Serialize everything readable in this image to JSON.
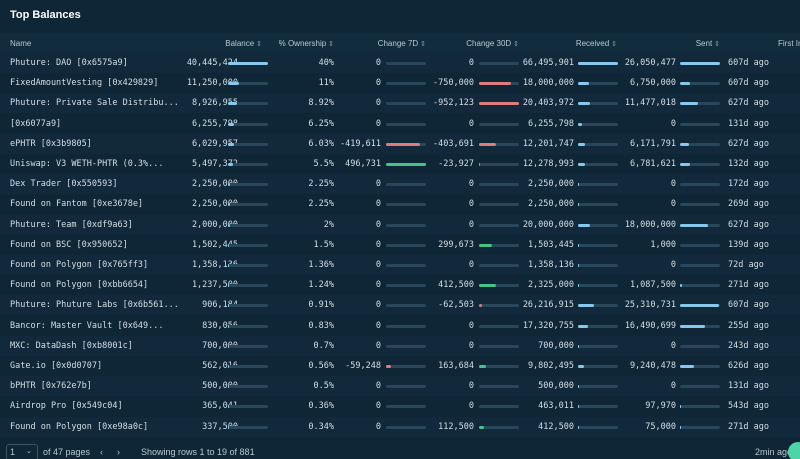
{
  "title": "Top Balances",
  "table": {
    "columns": [
      "Name",
      "Balance",
      "% Ownership",
      "Change 7D",
      "Change 30D",
      "Received",
      "Sent",
      "First In"
    ],
    "rows": [
      [
        "Phuture: DAO [0x6575a9]",
        "40,445,424",
        "40%",
        "0",
        "0",
        "66,495,901",
        "26,050,477",
        "607d ago"
      ],
      [
        "FixedAmountVesting [0x429829]",
        "11,250,000",
        "11%",
        "0",
        "-750,000",
        "18,000,000",
        "6,750,000",
        "607d ago"
      ],
      [
        "Phuture: Private Sale Distribu...",
        "8,926,955",
        "8.92%",
        "0",
        "-952,123",
        "20,403,972",
        "11,477,018",
        "627d ago"
      ],
      [
        "[0x6077a9]",
        "6,255,798",
        "6.25%",
        "0",
        "0",
        "6,255,798",
        "0",
        "131d ago"
      ],
      [
        "ePHTR [0x3b9805]",
        "6,029,957",
        "6.03%",
        "-419,611",
        "-403,691",
        "12,201,747",
        "6,171,791",
        "627d ago"
      ],
      [
        "Uniswap: V3 WETH-PHTR (0.3%...",
        "5,497,372",
        "5.5%",
        "496,731",
        "-23,927",
        "12,278,993",
        "6,781,621",
        "132d ago"
      ],
      [
        "Dex Trader [0x550593]",
        "2,250,000",
        "2.25%",
        "0",
        "0",
        "2,250,000",
        "0",
        "172d ago"
      ],
      [
        "Found on Fantom [0xe3678e]",
        "2,250,000",
        "2.25%",
        "0",
        "0",
        "2,250,000",
        "0",
        "269d ago"
      ],
      [
        "Phuture: Team [0xdf9a63]",
        "2,000,000",
        "2%",
        "0",
        "0",
        "20,000,000",
        "18,000,000",
        "627d ago"
      ],
      [
        "Found on BSC [0x950652]",
        "1,502,445",
        "1.5%",
        "0",
        "299,673",
        "1,503,445",
        "1,000",
        "139d ago"
      ],
      [
        "Found on Polygon [0x765ff3]",
        "1,358,136",
        "1.36%",
        "0",
        "0",
        "1,358,136",
        "0",
        "72d ago"
      ],
      [
        "Found on Polygon [0xbb6654]",
        "1,237,500",
        "1.24%",
        "0",
        "412,500",
        "2,325,000",
        "1,087,500",
        "271d ago"
      ],
      [
        "Phuture: Phuture Labs [0x6b561...",
        "906,184",
        "0.91%",
        "0",
        "-62,503",
        "26,216,915",
        "25,310,731",
        "607d ago"
      ],
      [
        "Bancor: Master Vault [0x649...",
        "830,056",
        "0.83%",
        "0",
        "0",
        "17,320,755",
        "16,490,699",
        "255d ago"
      ],
      [
        "MXC: DataDash [0xb8001c]",
        "700,000",
        "0.7%",
        "0",
        "0",
        "700,000",
        "0",
        "243d ago"
      ],
      [
        "Gate.io [0x0d0707]",
        "562,016",
        "0.56%",
        "-59,248",
        "163,684",
        "9,802,495",
        "9,240,478",
        "626d ago"
      ],
      [
        "bPHTR [0x762e7b]",
        "500,000",
        "0.5%",
        "0",
        "0",
        "500,000",
        "0",
        "131d ago"
      ],
      [
        "Airdrop Pro [0x549c04]",
        "365,041",
        "0.36%",
        "0",
        "0",
        "463,011",
        "97,970",
        "543d ago"
      ],
      [
        "Found on Polygon [0xe98a0c]",
        "337,500",
        "0.34%",
        "0",
        "112,500",
        "412,500",
        "75,000",
        "271d ago"
      ]
    ]
  },
  "footer": {
    "page": "1",
    "pages": "of 47 pages",
    "showing": "Showing rows 1 to 19 of 881",
    "updated": "2min ago"
  }
}
